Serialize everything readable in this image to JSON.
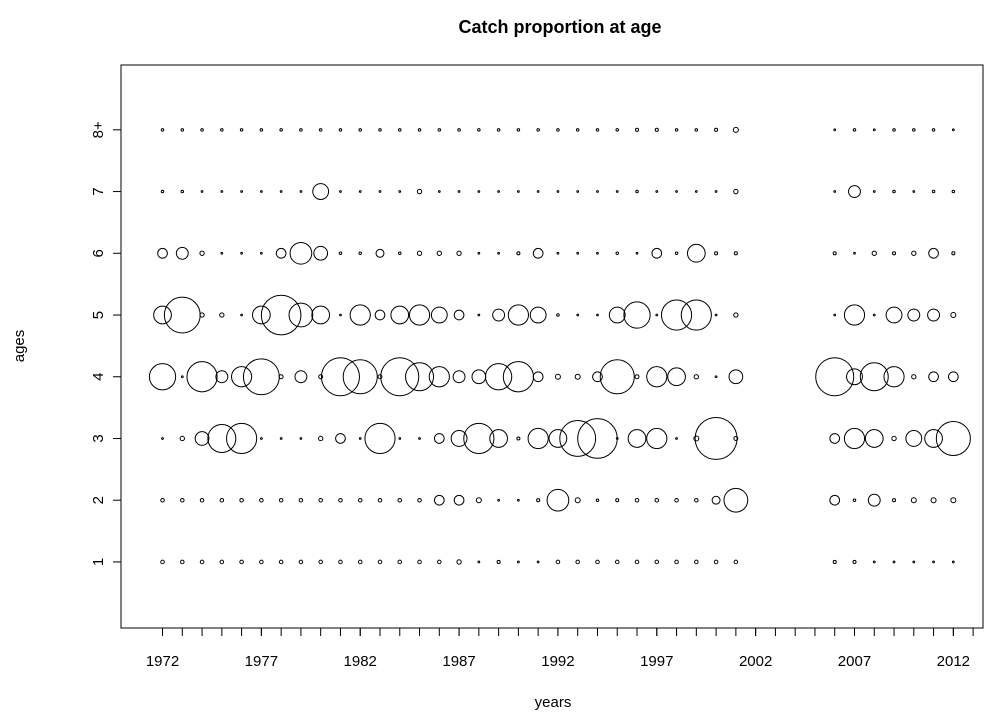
{
  "chart_data": {
    "type": "bubble",
    "title": "Catch proportion at age",
    "x_label": "years",
    "y_label": "ages",
    "x": [
      1972,
      1973,
      1974,
      1975,
      1976,
      1977,
      1978,
      1979,
      1980,
      1981,
      1982,
      1983,
      1984,
      1985,
      1986,
      1987,
      1988,
      1989,
      1990,
      1991,
      1992,
      1993,
      1994,
      1995,
      1996,
      1997,
      1998,
      1999,
      2000,
      2001,
      2006,
      2007,
      2008,
      2009,
      2010,
      2011,
      2012
    ],
    "xlim": [
      1969.9,
      2013.5
    ],
    "xticks": [
      1972,
      1977,
      1982,
      1987,
      1992,
      1997,
      2002,
      2007,
      2012
    ],
    "xminorticks": [
      1972,
      1973,
      1974,
      1975,
      1976,
      1977,
      1978,
      1979,
      1980,
      1981,
      1982,
      1983,
      1984,
      1985,
      1986,
      1987,
      1988,
      1989,
      1990,
      1991,
      1992,
      1993,
      1994,
      1995,
      1996,
      1997,
      1998,
      1999,
      2000,
      2001,
      2002,
      2003,
      2004,
      2005,
      2006,
      2007,
      2008,
      2009,
      2010,
      2011,
      2012,
      2013
    ],
    "ylim": [
      -0.07,
      9.05
    ],
    "yticks": [
      1,
      2,
      3,
      4,
      5,
      6,
      7,
      {
        "value": 8,
        "label": "8+"
      }
    ],
    "color": "#000000",
    "series": [
      {
        "y": 1,
        "values": [
          0.004,
          0.004,
          0.004,
          0.004,
          0.004,
          0.004,
          0.004,
          0.004,
          0.004,
          0.004,
          0.004,
          0.004,
          0.004,
          0.004,
          0.004,
          0.006,
          0.001,
          0.003,
          0.001,
          0.001,
          0.004,
          0.004,
          0.004,
          0.004,
          0.004,
          0.004,
          0.004,
          0.004,
          0.004,
          0.004,
          0.003,
          0.003,
          0.001,
          0.001,
          0.001,
          0.001,
          0.001
        ]
      },
      {
        "y": 2,
        "values": [
          0.004,
          0.004,
          0.004,
          0.004,
          0.004,
          0.004,
          0.004,
          0.004,
          0.004,
          0.004,
          0.004,
          0.004,
          0.004,
          0.004,
          0.03,
          0.03,
          0.008,
          0.001,
          0.001,
          0.003,
          0.15,
          0.008,
          0.002,
          0.003,
          0.004,
          0.004,
          0.004,
          0.004,
          0.02,
          0.18,
          0.03,
          0.002,
          0.045,
          0.003,
          0.008,
          0.008,
          0.008
        ]
      },
      {
        "y": 3,
        "values": [
          0.001,
          0.006,
          0.06,
          0.25,
          0.29,
          0.001,
          0.001,
          0.001,
          0.006,
          0.03,
          0.001,
          0.29,
          0.001,
          0.001,
          0.03,
          0.08,
          0.29,
          0.1,
          0.003,
          0.13,
          0.1,
          0.41,
          0.5,
          0.001,
          0.1,
          0.13,
          0.001,
          0.008,
          0.56,
          0.005,
          0.03,
          0.13,
          0.1,
          0.006,
          0.08,
          0.1,
          0.37
        ]
      },
      {
        "y": 4,
        "values": [
          0.22,
          0.001,
          0.29,
          0.045,
          0.13,
          0.41,
          0.005,
          0.045,
          0.005,
          0.46,
          0.37,
          0.005,
          0.46,
          0.25,
          0.13,
          0.045,
          0.06,
          0.22,
          0.29,
          0.03,
          0.008,
          0.008,
          0.03,
          0.37,
          0.005,
          0.13,
          0.1,
          0.006,
          0.001,
          0.06,
          0.46,
          0.08,
          0.25,
          0.13,
          0.006,
          0.03,
          0.03
        ]
      },
      {
        "y": 5,
        "values": [
          0.1,
          0.41,
          0.006,
          0.006,
          0.001,
          0.1,
          0.5,
          0.18,
          0.1,
          0.001,
          0.13,
          0.03,
          0.1,
          0.13,
          0.08,
          0.03,
          0.001,
          0.045,
          0.13,
          0.08,
          0.002,
          0.001,
          0.001,
          0.08,
          0.22,
          0.001,
          0.29,
          0.29,
          0.001,
          0.006,
          0.001,
          0.13,
          0.001,
          0.08,
          0.045,
          0.045,
          0.008
        ]
      },
      {
        "y": 6,
        "values": [
          0.03,
          0.045,
          0.006,
          0.001,
          0.001,
          0.001,
          0.03,
          0.15,
          0.06,
          0.002,
          0.002,
          0.02,
          0.002,
          0.006,
          0.006,
          0.006,
          0.001,
          0.001,
          0.003,
          0.03,
          0.001,
          0.001,
          0.001,
          0.002,
          0.001,
          0.03,
          0.002,
          0.1,
          0.003,
          0.003,
          0.003,
          0.001,
          0.006,
          0.003,
          0.006,
          0.03,
          0.003
        ]
      },
      {
        "y": 7,
        "values": [
          0.002,
          0.002,
          0.001,
          0.001,
          0.001,
          0.001,
          0.001,
          0.001,
          0.08,
          0.001,
          0.001,
          0.001,
          0.001,
          0.006,
          0.001,
          0.001,
          0.001,
          0.001,
          0.001,
          0.001,
          0.001,
          0.001,
          0.001,
          0.001,
          0.002,
          0.001,
          0.001,
          0.001,
          0.001,
          0.006,
          0.001,
          0.045,
          0.001,
          0.002,
          0.001,
          0.002,
          0.002
        ]
      },
      {
        "y": 8,
        "values": [
          0.002,
          0.002,
          0.002,
          0.002,
          0.002,
          0.002,
          0.002,
          0.002,
          0.002,
          0.002,
          0.002,
          0.002,
          0.002,
          0.002,
          0.002,
          0.002,
          0.002,
          0.002,
          0.002,
          0.002,
          0.002,
          0.002,
          0.002,
          0.002,
          0.003,
          0.003,
          0.002,
          0.002,
          0.003,
          0.008,
          0.001,
          0.002,
          0.001,
          0.002,
          0.002,
          0.002,
          0.001
        ]
      }
    ]
  }
}
